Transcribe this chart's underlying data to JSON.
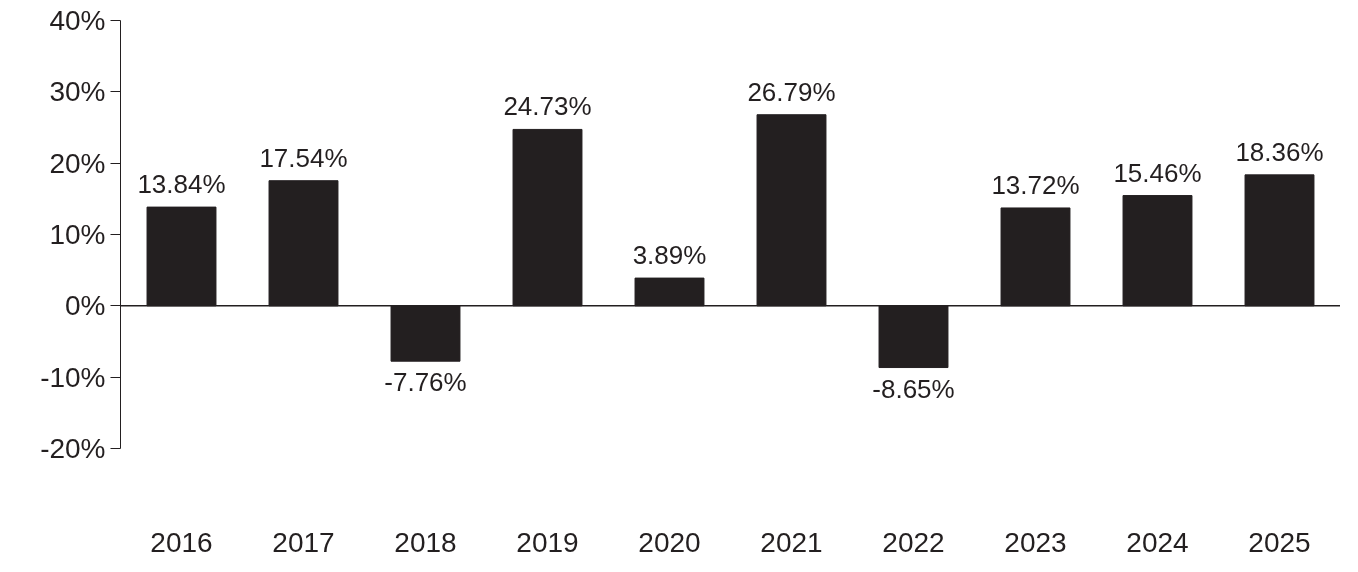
{
  "chart_data": {
    "type": "bar",
    "categories": [
      "2016",
      "2017",
      "2018",
      "2019",
      "2020",
      "2021",
      "2022",
      "2023",
      "2024",
      "2025"
    ],
    "values": [
      13.84,
      17.54,
      -7.76,
      24.73,
      3.89,
      26.79,
      -8.65,
      13.72,
      15.46,
      18.36
    ],
    "value_labels": [
      "13.84%",
      "17.54%",
      "-7.76%",
      "24.73%",
      "3.89%",
      "26.79%",
      "-8.65%",
      "13.72%",
      "15.46%",
      "18.36%"
    ],
    "color": "#231f20",
    "ylim": [
      -20,
      40
    ],
    "yticks": [
      {
        "value": -20,
        "label": "-20%"
      },
      {
        "value": -10,
        "label": "-10%"
      },
      {
        "value": 0,
        "label": "0%"
      },
      {
        "value": 10,
        "label": "10%"
      },
      {
        "value": 20,
        "label": "20%"
      },
      {
        "value": 30,
        "label": "30%"
      },
      {
        "value": 40,
        "label": "40%"
      }
    ],
    "ref_lines": [
      {
        "axis": "y",
        "value": 0,
        "color": "#231f20"
      }
    ],
    "grid": false
  }
}
